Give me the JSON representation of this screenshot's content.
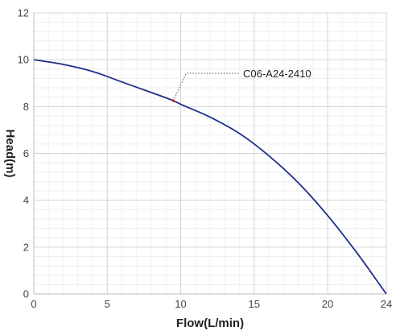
{
  "chart_data": {
    "type": "line",
    "title": "",
    "xlabel": "Flow(L/min)",
    "ylabel": "Head(m)",
    "xlim": [
      0,
      24
    ],
    "ylim": [
      0,
      12
    ],
    "x_ticks": [
      0,
      5,
      10,
      15,
      20,
      24
    ],
    "y_ticks": [
      0,
      2,
      4,
      6,
      8,
      10,
      12
    ],
    "grid": true,
    "legend": "none",
    "series": [
      {
        "color": "#1f2f8c",
        "x": [
          0,
          2,
          4,
          6,
          8,
          9.5,
          10,
          12,
          14,
          16,
          18,
          20,
          22,
          24
        ],
        "y": [
          10.0,
          9.8,
          9.5,
          9.05,
          8.6,
          8.25,
          8.1,
          7.55,
          6.85,
          5.9,
          4.75,
          3.35,
          1.75,
          0.0
        ]
      }
    ],
    "annotation": {
      "text": "C06-A24-2410",
      "point": {
        "x": 9.5,
        "y": 8.25
      },
      "marker_color": "#d62728"
    }
  }
}
